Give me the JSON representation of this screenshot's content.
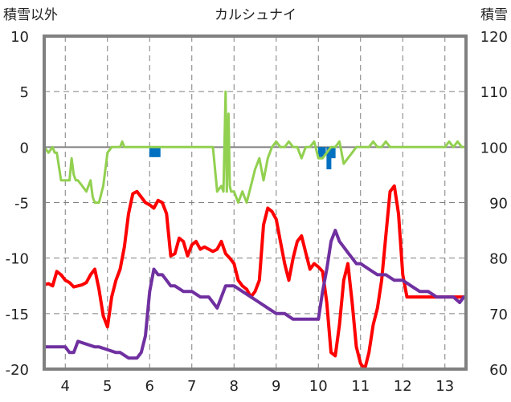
{
  "chart_data": {
    "type": "line",
    "title": "カルシュナイ",
    "ylabel_left": "積雪以外",
    "ylabel_right": "積雪",
    "x_ticks": [
      4,
      5,
      6,
      7,
      8,
      9,
      10,
      11,
      12,
      13
    ],
    "xlim": [
      3.5,
      13.5
    ],
    "ylim_left": [
      -20,
      10
    ],
    "ylim_right": [
      60,
      120
    ],
    "y_ticks_left": [
      10,
      5,
      0,
      -5,
      -10,
      -15,
      -20
    ],
    "y_ticks_right": [
      120,
      110,
      100,
      90,
      80,
      70,
      60
    ],
    "grid": true,
    "series": [
      {
        "axis": "left",
        "color": "#ff0000",
        "x": [
          3.5,
          3.6,
          3.7,
          3.8,
          3.9,
          4.0,
          4.1,
          4.2,
          4.3,
          4.4,
          4.5,
          4.6,
          4.7,
          4.8,
          4.9,
          5.0,
          5.1,
          5.2,
          5.3,
          5.4,
          5.5,
          5.6,
          5.7,
          5.8,
          5.9,
          6.0,
          6.1,
          6.2,
          6.3,
          6.4,
          6.5,
          6.6,
          6.7,
          6.8,
          6.9,
          7.0,
          7.1,
          7.2,
          7.3,
          7.4,
          7.5,
          7.6,
          7.7,
          7.8,
          7.9,
          8.0,
          8.1,
          8.2,
          8.3,
          8.4,
          8.5,
          8.6,
          8.7,
          8.8,
          8.9,
          9.0,
          9.1,
          9.2,
          9.3,
          9.4,
          9.5,
          9.6,
          9.7,
          9.8,
          9.9,
          10.0,
          10.1,
          10.2,
          10.3,
          10.4,
          10.5,
          10.6,
          10.7,
          10.8,
          10.9,
          11.0,
          11.1,
          11.2,
          11.3,
          11.4,
          11.5,
          11.6,
          11.7,
          11.8,
          11.9,
          12.0,
          12.1,
          12.2,
          12.3,
          12.4,
          12.5,
          12.6,
          12.7,
          12.8,
          12.9,
          13.0,
          13.1,
          13.2,
          13.3,
          13.4,
          13.45
        ],
        "y": [
          -12.4,
          -12.3,
          -12.5,
          -11.2,
          -11.5,
          -12.0,
          -12.2,
          -12.6,
          -12.5,
          -12.4,
          -12.2,
          -11.5,
          -11.0,
          -12.8,
          -15.2,
          -16.2,
          -13.5,
          -12.0,
          -11.0,
          -9.0,
          -6.0,
          -4.2,
          -4.0,
          -4.5,
          -5.0,
          -5.2,
          -5.5,
          -4.8,
          -5.0,
          -6.0,
          -9.8,
          -9.6,
          -8.2,
          -8.5,
          -9.8,
          -8.8,
          -8.5,
          -9.2,
          -9.0,
          -9.2,
          -9.4,
          -9.2,
          -8.5,
          -9.6,
          -10.0,
          -10.5,
          -12.0,
          -12.5,
          -12.8,
          -13.5,
          -13.0,
          -12.0,
          -7.0,
          -5.5,
          -5.8,
          -6.5,
          -8.5,
          -10.5,
          -12.0,
          -10.0,
          -8.5,
          -8.0,
          -9.5,
          -11.0,
          -10.5,
          -10.8,
          -11.2,
          -14.0,
          -18.5,
          -18.8,
          -16.0,
          -12.0,
          -10.5,
          -14.0,
          -18.0,
          -19.5,
          -20.0,
          -18.5,
          -16.0,
          -14.5,
          -12.0,
          -8.0,
          -4.0,
          -3.5,
          -6.0,
          -11.5,
          -13.5,
          -13.5,
          -13.5,
          -13.5,
          -13.5,
          -13.5,
          -13.5,
          -13.5,
          -13.5,
          -13.5,
          -13.5,
          -13.5,
          -13.5,
          -13.5,
          -13.5
        ]
      },
      {
        "axis": "left",
        "color": "#7030a0",
        "x": [
          3.5,
          4.0,
          4.1,
          4.2,
          4.3,
          4.7,
          4.8,
          5.2,
          5.3,
          5.5,
          5.7,
          5.8,
          5.9,
          6.0,
          6.1,
          6.2,
          6.3,
          6.4,
          6.5,
          6.6,
          6.8,
          7.0,
          7.2,
          7.4,
          7.6,
          7.8,
          8.0,
          8.2,
          8.4,
          8.6,
          8.8,
          9.0,
          9.2,
          9.4,
          9.6,
          9.8,
          10.0,
          10.1,
          10.2,
          10.3,
          10.4,
          10.5,
          10.6,
          10.7,
          10.8,
          10.9,
          11.0,
          11.2,
          11.4,
          11.6,
          11.8,
          12.0,
          12.2,
          12.4,
          12.6,
          12.8,
          13.0,
          13.2,
          13.35,
          13.45
        ],
        "y": [
          -18.0,
          -18.0,
          -18.5,
          -18.5,
          -17.5,
          -18.0,
          -18.0,
          -18.5,
          -18.5,
          -19.0,
          -19.0,
          -18.5,
          -17.0,
          -13.0,
          -11.0,
          -11.5,
          -11.5,
          -12.0,
          -12.5,
          -12.5,
          -13.0,
          -13.0,
          -13.5,
          -13.5,
          -14.5,
          -12.5,
          -12.5,
          -13.0,
          -13.5,
          -14.0,
          -14.5,
          -15.0,
          -15.0,
          -15.5,
          -15.5,
          -15.5,
          -15.5,
          -13.0,
          -11.0,
          -8.5,
          -7.5,
          -8.5,
          -9.0,
          -9.5,
          -10.0,
          -10.5,
          -10.5,
          -11.0,
          -11.5,
          -11.5,
          -12.0,
          -12.0,
          -12.5,
          -13.0,
          -13.0,
          -13.5,
          -13.5,
          -13.5,
          -14.0,
          -13.5
        ]
      },
      {
        "axis": "left",
        "color": "#92d050",
        "x": [
          3.5,
          3.6,
          3.7,
          3.75,
          3.8,
          3.9,
          4.0,
          4.1,
          4.15,
          4.2,
          4.25,
          4.3,
          4.4,
          4.5,
          4.6,
          4.65,
          4.7,
          4.8,
          4.9,
          5.0,
          5.1,
          5.2,
          5.3,
          5.35,
          5.4,
          5.5,
          5.6,
          5.7,
          5.8,
          6.0,
          6.5,
          7.0,
          7.3,
          7.5,
          7.6,
          7.7,
          7.75,
          7.8,
          7.83,
          7.87,
          7.9,
          7.93,
          8.0,
          8.1,
          8.2,
          8.3,
          8.4,
          8.5,
          8.6,
          8.7,
          8.8,
          8.9,
          9.0,
          9.1,
          9.2,
          9.3,
          9.4,
          9.5,
          9.6,
          9.7,
          9.8,
          9.9,
          10.0,
          10.1,
          10.2,
          10.3,
          10.4,
          10.5,
          10.6,
          10.7,
          10.8,
          10.9,
          11.0,
          11.1,
          11.2,
          11.3,
          11.4,
          11.5,
          11.6,
          11.7,
          11.8,
          11.9,
          12.0,
          12.5,
          13.0,
          13.1,
          13.2,
          13.3,
          13.4,
          13.45
        ],
        "y": [
          0,
          -0.5,
          0,
          -0.5,
          -0.5,
          -3.0,
          -3.0,
          -3.0,
          -1.0,
          -2.5,
          -3.0,
          -3.0,
          -3.5,
          -4.0,
          -3.0,
          -4.5,
          -5.0,
          -5.0,
          -3.5,
          -0.5,
          0,
          0,
          0,
          0.5,
          0,
          0,
          0,
          0,
          0,
          0,
          0,
          0,
          0,
          0,
          -4.0,
          -3.5,
          -4.0,
          5.0,
          -4.0,
          3.0,
          -3.5,
          -4.0,
          -4.0,
          -5.0,
          -4.0,
          -5.0,
          -3.5,
          -2.0,
          -1.0,
          -3.0,
          -1.0,
          0,
          0.5,
          0,
          0,
          0.5,
          0,
          0,
          -1.0,
          0,
          0,
          0.5,
          -1.0,
          -1.0,
          -0.5,
          0,
          0,
          0.5,
          -1.5,
          -1.0,
          -0.5,
          0,
          0,
          0,
          0,
          0.5,
          0,
          0,
          0.5,
          0,
          0,
          0,
          0,
          0,
          0,
          0.5,
          0,
          0.5,
          0,
          0
        ]
      },
      {
        "axis": "left",
        "type": "bar",
        "color": "#0070c0",
        "x": [
          6.05,
          6.12,
          6.2,
          10.05,
          10.12,
          10.25,
          10.35
        ],
        "y": [
          -0.9,
          -0.9,
          -0.9,
          -0.9,
          -0.8,
          -2.0,
          -1.0
        ]
      }
    ]
  }
}
